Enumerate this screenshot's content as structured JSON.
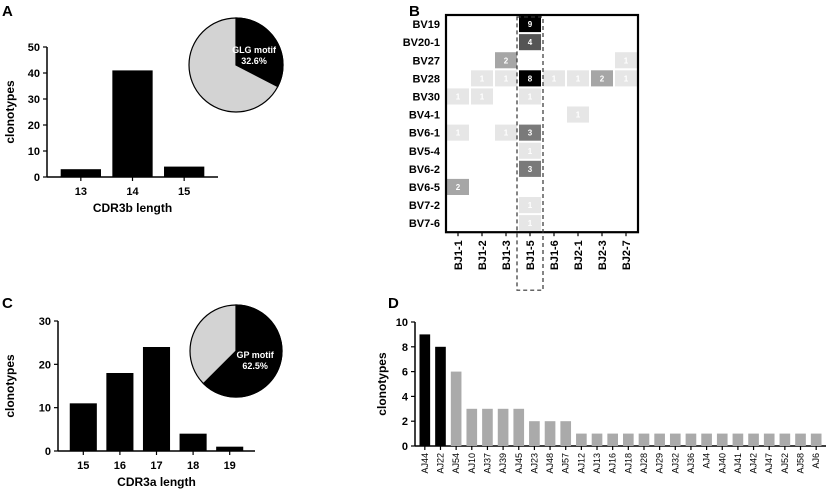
{
  "panels": {
    "a": "A",
    "b": "B",
    "c": "C",
    "d": "D"
  },
  "chart_data": [
    {
      "id": "A",
      "type": "bar",
      "categories": [
        "13",
        "14",
        "15"
      ],
      "values": [
        3,
        41,
        4
      ],
      "xlabel": "CDR3b length",
      "ylabel": "clonotypes",
      "ylim": [
        0,
        50
      ],
      "yticks": [
        "0",
        "10",
        "20",
        "30",
        "40",
        "50"
      ],
      "color": "#000000",
      "inset_pie": {
        "label": "GLG motif",
        "value_label": "32.6%",
        "fraction": 0.326,
        "motif_color": "#000000",
        "rest_color": "#d3d3d3"
      }
    },
    {
      "id": "B",
      "type": "heatmap",
      "rows": [
        "BV19",
        "BV20-1",
        "BV27",
        "BV28",
        "BV30",
        "BV4-1",
        "BV6-1",
        "BV5-4",
        "BV6-2",
        "BV6-5",
        "BV7-2",
        "BV7-6"
      ],
      "cols": [
        "BJ1-1",
        "BJ1-2",
        "BJ1-3",
        "BJ1-5",
        "BJ1-6",
        "BJ2-1",
        "BJ2-3",
        "BJ2-7"
      ],
      "cells": [
        {
          "r": 0,
          "c": 3,
          "v": 9
        },
        {
          "r": 1,
          "c": 3,
          "v": 4
        },
        {
          "r": 2,
          "c": 2,
          "v": 2
        },
        {
          "r": 2,
          "c": 7,
          "v": 1
        },
        {
          "r": 3,
          "c": 1,
          "v": 1
        },
        {
          "r": 3,
          "c": 2,
          "v": 1
        },
        {
          "r": 3,
          "c": 3,
          "v": 8
        },
        {
          "r": 3,
          "c": 4,
          "v": 1
        },
        {
          "r": 3,
          "c": 5,
          "v": 1
        },
        {
          "r": 3,
          "c": 6,
          "v": 2
        },
        {
          "r": 3,
          "c": 7,
          "v": 1
        },
        {
          "r": 4,
          "c": 0,
          "v": 1
        },
        {
          "r": 4,
          "c": 1,
          "v": 1
        },
        {
          "r": 4,
          "c": 3,
          "v": 1
        },
        {
          "r": 5,
          "c": 5,
          "v": 1
        },
        {
          "r": 6,
          "c": 0,
          "v": 1
        },
        {
          "r": 6,
          "c": 2,
          "v": 1
        },
        {
          "r": 6,
          "c": 3,
          "v": 3
        },
        {
          "r": 7,
          "c": 3,
          "v": 1
        },
        {
          "r": 8,
          "c": 3,
          "v": 3
        },
        {
          "r": 9,
          "c": 0,
          "v": 2
        },
        {
          "r": 10,
          "c": 3,
          "v": 1
        },
        {
          "r": 11,
          "c": 3,
          "v": 1
        }
      ],
      "highlight_col": "BJ1-5"
    },
    {
      "id": "C",
      "type": "bar",
      "categories": [
        "15",
        "16",
        "17",
        "18",
        "19"
      ],
      "values": [
        11,
        18,
        24,
        4,
        1
      ],
      "xlabel": "CDR3a length",
      "ylabel": "clonotypes",
      "ylim": [
        0,
        30
      ],
      "yticks": [
        "0",
        "10",
        "20",
        "30"
      ],
      "color": "#000000",
      "inset_pie": {
        "label": "GP motif",
        "value_label": "62.5%",
        "fraction": 0.625,
        "motif_color": "#000000",
        "rest_color": "#d3d3d3"
      }
    },
    {
      "id": "D",
      "type": "bar",
      "categories": [
        "AJ44",
        "AJ22",
        "AJ54",
        "AJ10",
        "AJ37",
        "AJ39",
        "AJ45",
        "AJ23",
        "AJ48",
        "AJ57",
        "AJ12",
        "AJ13",
        "AJ16",
        "AJ18",
        "AJ28",
        "AJ29",
        "AJ32",
        "AJ36",
        "AJ4",
        "AJ40",
        "AJ41",
        "AJ42",
        "AJ47",
        "AJ52",
        "AJ58",
        "AJ6"
      ],
      "values": [
        9,
        8,
        6,
        3,
        3,
        3,
        3,
        2,
        2,
        2,
        1,
        1,
        1,
        1,
        1,
        1,
        1,
        1,
        1,
        1,
        1,
        1,
        1,
        1,
        1,
        1
      ],
      "highlight_count": 2,
      "highlight_color": "#000000",
      "base_color": "#aaaaaa",
      "ylabel": "clonotypes",
      "ylim": [
        0,
        10
      ],
      "yticks": [
        "0",
        "2",
        "4",
        "6",
        "8",
        "10"
      ]
    }
  ]
}
